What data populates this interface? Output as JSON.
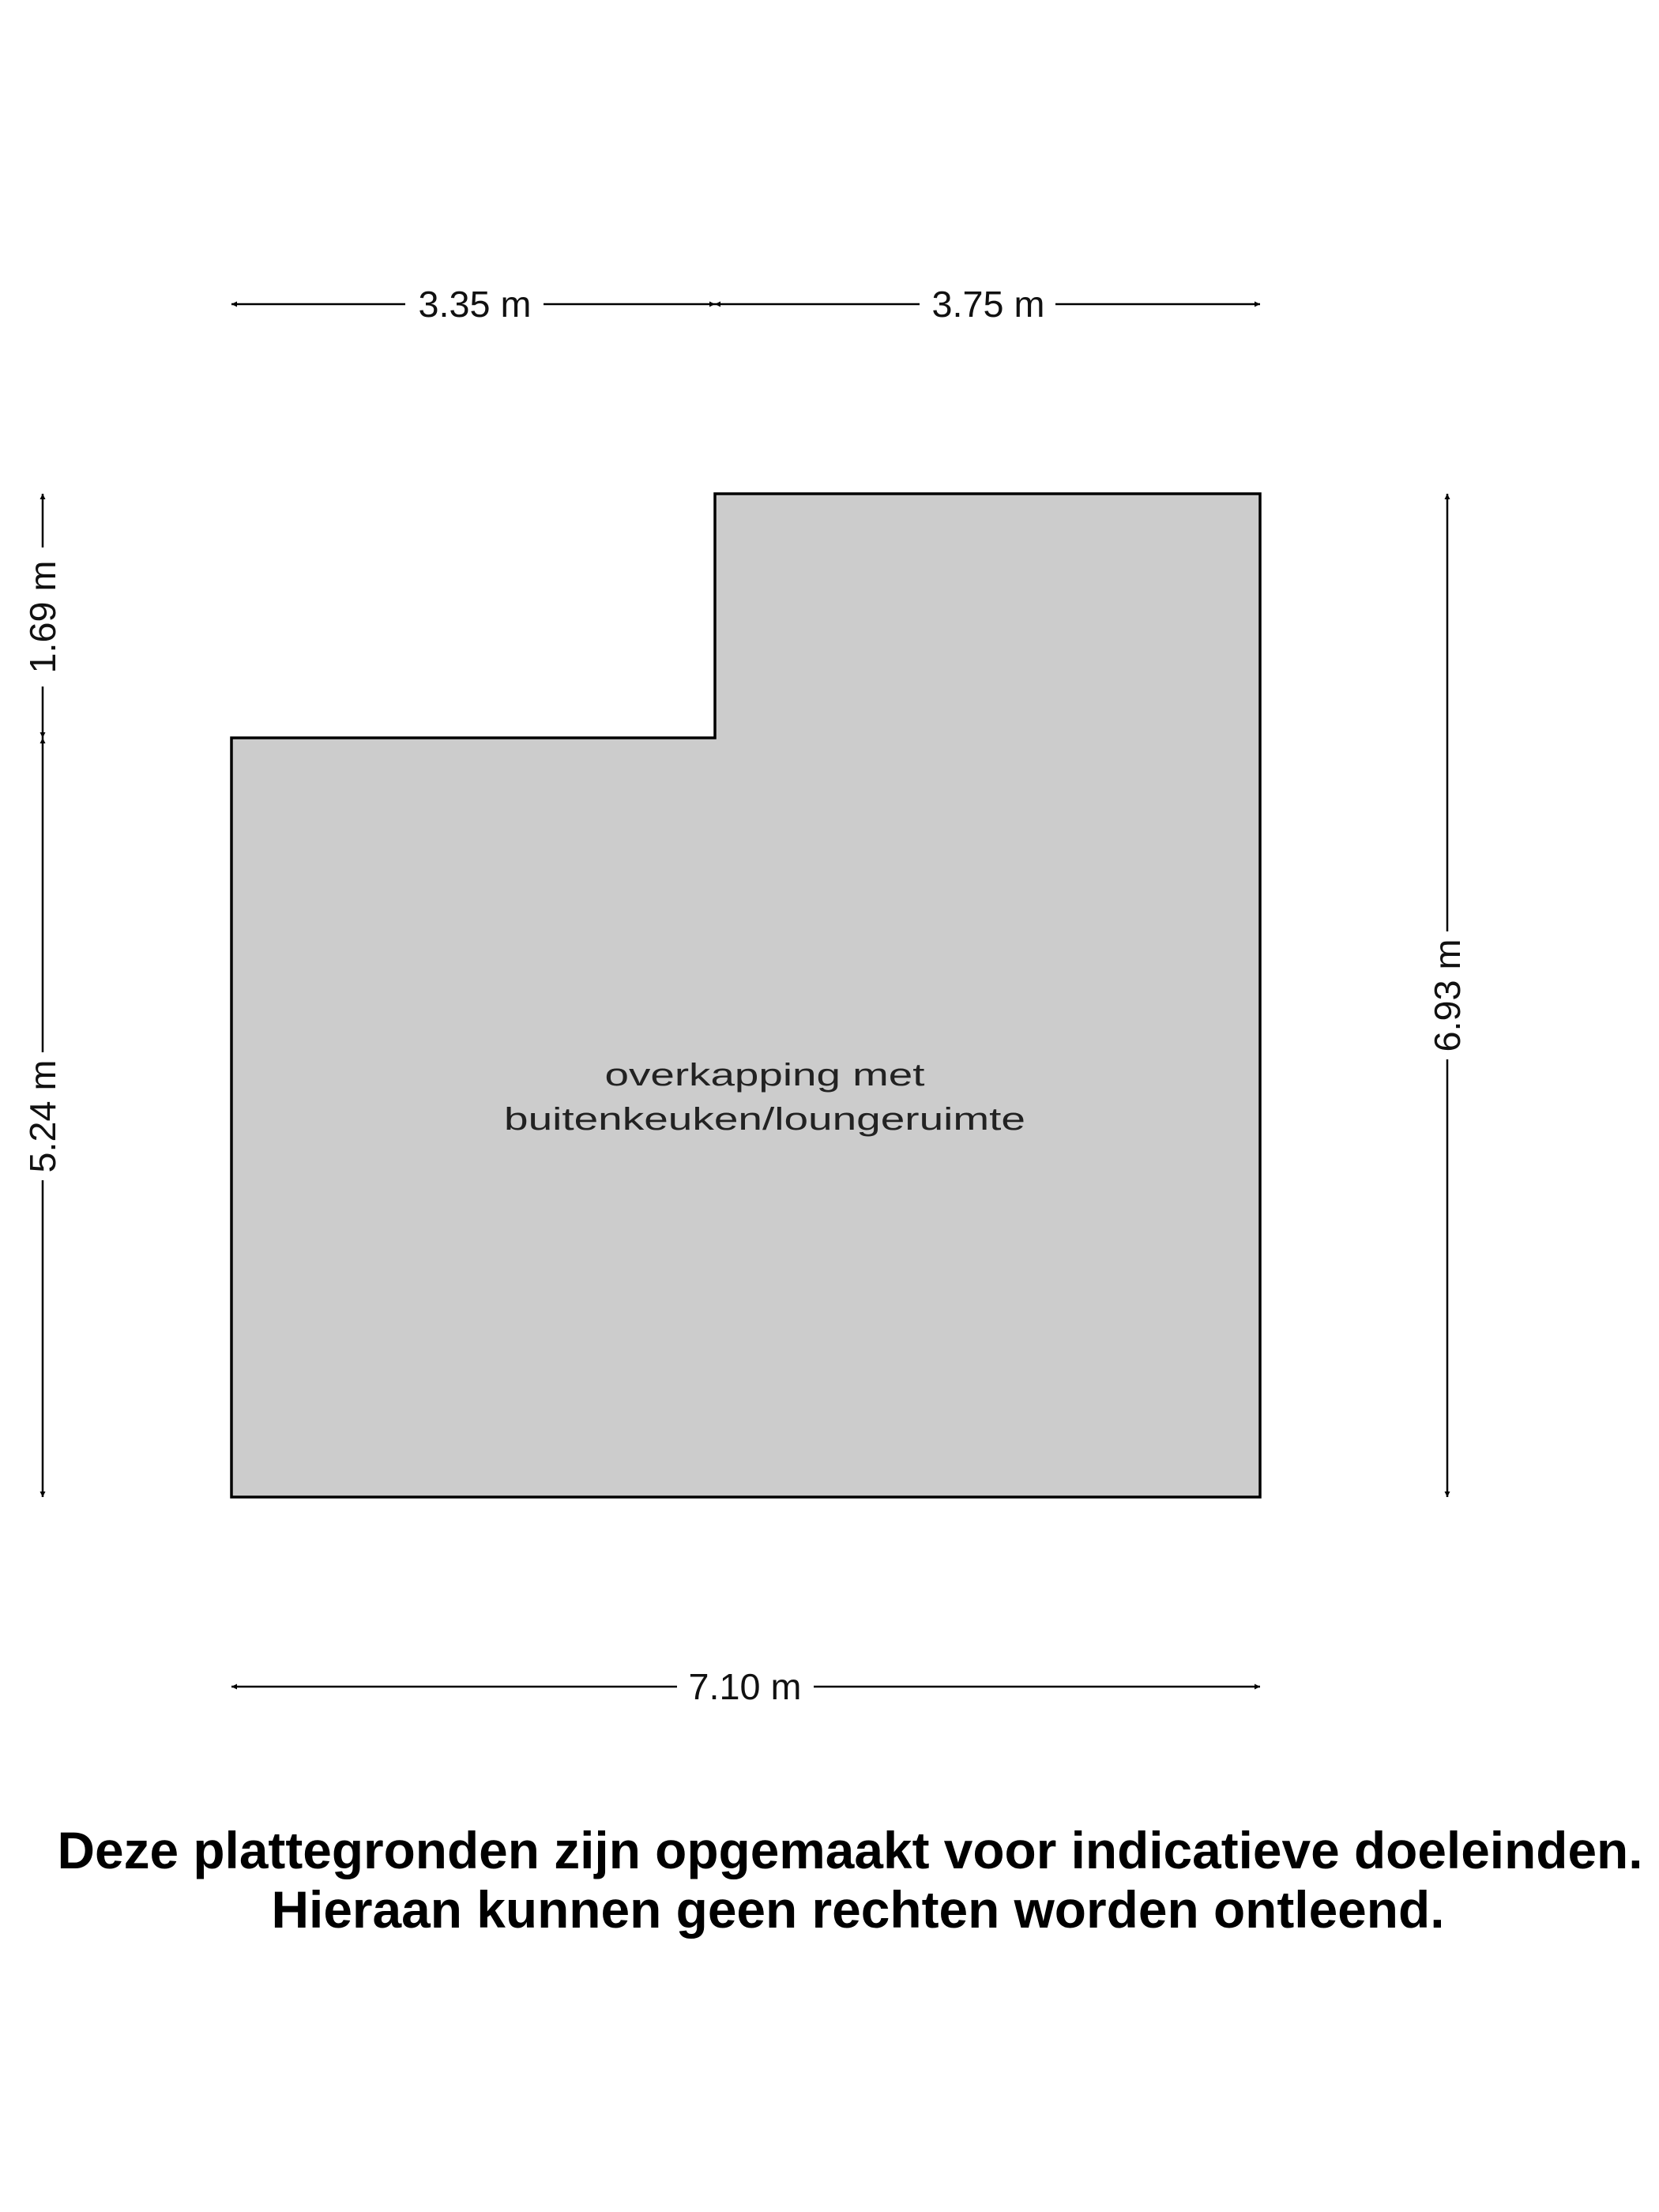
{
  "floorplan": {
    "room": {
      "label_line1": "overkapping met",
      "label_line2": "buitenkeuken/loungeruimte",
      "fill_color": "#cccccc",
      "outline_color": "#000000"
    },
    "dimensions": {
      "top_left": "3.35 m",
      "top_right": "3.75 m",
      "bottom": "7.10 m",
      "left_upper": "1.69 m",
      "left_lower": "5.24 m",
      "right": "6.93 m"
    }
  },
  "disclaimer": {
    "line1": "Deze plattegronden zijn opgemaakt voor indicatieve doeleinden.",
    "line2": "Hieraan kunnen geen rechten worden ontleend."
  }
}
